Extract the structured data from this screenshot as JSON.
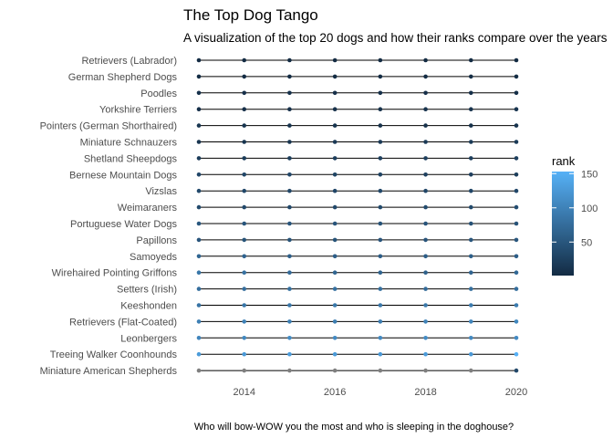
{
  "chart_data": {
    "type": "scatter",
    "title": "The Top Dog Tango",
    "subtitle": "A visualization of the top 20 dogs and how their ranks compare over the years",
    "caption": "Who will bow-WOW you the most and who is sleeping in the doghouse?",
    "xlabel": "",
    "ylabel": "",
    "x": [
      2013,
      2014,
      2015,
      2016,
      2017,
      2018,
      2019,
      2020
    ],
    "x_ticks": [
      "2014",
      "2016",
      "2018",
      "2020"
    ],
    "xlim": [
      2013,
      2020
    ],
    "categories": [
      "Retrievers (Labrador)",
      "German Shepherd Dogs",
      "Poodles",
      "Yorkshire Terriers",
      "Pointers (German Shorthaired)",
      "Miniature Schnauzers",
      "Shetland Sheepdogs",
      "Bernese Mountain Dogs",
      "Vizslas",
      "Weimaraners",
      "Portuguese Water Dogs",
      "Papillons",
      "Samoyeds",
      "Wirehaired Pointing Griffons",
      "Setters (Irish)",
      "Keeshonden",
      "Retrievers (Flat-Coated)",
      "Leonbergers",
      "Treeing Walker Coonhounds",
      "Miniature American Shepherds"
    ],
    "series": [
      {
        "values": [
          1,
          1,
          1,
          1,
          1,
          1,
          1,
          1
        ]
      },
      {
        "values": [
          2,
          2,
          2,
          2,
          2,
          2,
          3,
          3
        ]
      },
      {
        "values": [
          8,
          7,
          8,
          7,
          7,
          7,
          6,
          5
        ]
      },
      {
        "values": [
          6,
          6,
          7,
          9,
          9,
          10,
          10,
          12
        ]
      },
      {
        "values": [
          13,
          12,
          11,
          11,
          9,
          9,
          8,
          11
        ]
      },
      {
        "values": [
          12,
          11,
          12,
          17,
          17,
          18,
          18,
          19
        ]
      },
      {
        "values": [
          20,
          20,
          22,
          24,
          24,
          25,
          23,
          25
        ]
      },
      {
        "values": [
          32,
          32,
          32,
          29,
          27,
          25,
          23,
          22
        ]
      },
      {
        "values": [
          35,
          33,
          32,
          31,
          33,
          32,
          31,
          33
        ]
      },
      {
        "values": [
          36,
          35,
          34,
          35,
          36,
          37,
          36,
          40
        ]
      },
      {
        "values": [
          51,
          49,
          49,
          48,
          46,
          48,
          44,
          46
        ]
      },
      {
        "values": [
          48,
          47,
          46,
          47,
          48,
          48,
          50,
          51
        ]
      },
      {
        "values": [
          67,
          65,
          60,
          59,
          58,
          59,
          60,
          59
        ]
      },
      {
        "values": [
          86,
          80,
          73,
          67,
          64,
          62,
          65,
          70
        ]
      },
      {
        "values": [
          77,
          77,
          79,
          80,
          79,
          74,
          78,
          77
        ]
      },
      {
        "values": [
          83,
          86,
          87,
          88,
          87,
          89,
          92,
          93
        ]
      },
      {
        "values": [
          96,
          99,
          97,
          94,
          93,
          101,
          103,
          106
        ]
      },
      {
        "values": [
          102,
          106,
          111,
          109,
          108,
          111,
          108,
          109
        ]
      },
      {
        "values": [
          128,
          126,
          130,
          127,
          125,
          129,
          125,
          153
        ]
      },
      {
        "values": [
          null,
          null,
          null,
          null,
          null,
          null,
          null,
          34
        ]
      }
    ],
    "legend": {
      "title": "rank",
      "ticks": [
        50,
        100,
        150
      ],
      "range": [
        1,
        153
      ],
      "position": "right"
    },
    "grid": false,
    "colors": {
      "low": "#132B43",
      "high": "#56B1F7",
      "na": "#7f7f7f",
      "segment": "#000000"
    }
  }
}
